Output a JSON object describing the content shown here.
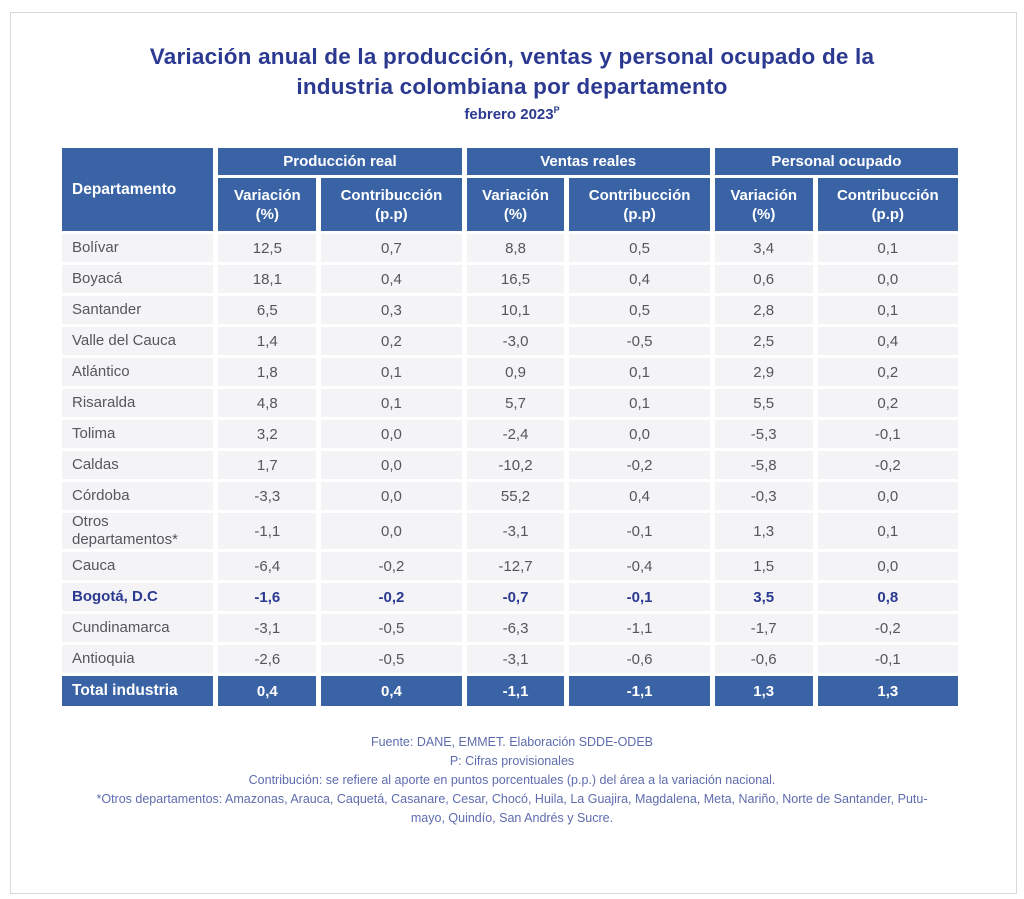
{
  "page": {
    "title_line1": "Variación anual de la producción, ventas y personal ocupado de la",
    "title_line2": "industria colombiana por departamento",
    "subtitle": "febrero 2023",
    "subtitle_sup": "P"
  },
  "colors": {
    "header_blue": "#3a63a5",
    "navy": "#2b3990",
    "row_gray": "#f4f4f6",
    "text_gray": "#55565e",
    "footer_blue": "#5e6cae"
  },
  "table": {
    "corner_header": "Departamento",
    "groups": [
      {
        "label": "Producción real"
      },
      {
        "label": "Ventas reales"
      },
      {
        "label": "Personal ocupado"
      }
    ],
    "subheaders": [
      {
        "top": "Variación",
        "bottom": "(%)"
      },
      {
        "top": "Contribucción",
        "bottom": "(p.p)"
      },
      {
        "top": "Variación",
        "bottom": "(%)"
      },
      {
        "top": "Contribucción",
        "bottom": "(p.p)"
      },
      {
        "top": "Variación",
        "bottom": "(%)"
      },
      {
        "top": "Contribucción",
        "bottom": "(p.p)"
      }
    ],
    "rows": [
      {
        "name": "Bolívar",
        "bold": false,
        "values": [
          "12,5",
          "0,7",
          "8,8",
          "0,5",
          "3,4",
          "0,1"
        ]
      },
      {
        "name": "Boyacá",
        "bold": false,
        "values": [
          "18,1",
          "0,4",
          "16,5",
          "0,4",
          "0,6",
          "0,0"
        ]
      },
      {
        "name": "Santander",
        "bold": false,
        "values": [
          "6,5",
          "0,3",
          "10,1",
          "0,5",
          "2,8",
          "0,1"
        ]
      },
      {
        "name": "Valle del Cauca",
        "bold": false,
        "values": [
          "1,4",
          "0,2",
          "-3,0",
          "-0,5",
          "2,5",
          "0,4"
        ]
      },
      {
        "name": "Atlántico",
        "bold": false,
        "values": [
          "1,8",
          "0,1",
          "0,9",
          "0,1",
          "2,9",
          "0,2"
        ]
      },
      {
        "name": "Risaralda",
        "bold": false,
        "values": [
          "4,8",
          "0,1",
          "5,7",
          "0,1",
          "5,5",
          "0,2"
        ]
      },
      {
        "name": "Tolima",
        "bold": false,
        "values": [
          "3,2",
          "0,0",
          "-2,4",
          "0,0",
          "-5,3",
          "-0,1"
        ]
      },
      {
        "name": "Caldas",
        "bold": false,
        "values": [
          "1,7",
          "0,0",
          "-10,2",
          "-0,2",
          "-5,8",
          "-0,2"
        ]
      },
      {
        "name": "Córdoba",
        "bold": false,
        "values": [
          "-3,3",
          "0,0",
          "55,2",
          "0,4",
          "-0,3",
          "0,0"
        ]
      },
      {
        "name": "Otros departamentos*",
        "bold": false,
        "values": [
          "-1,1",
          "0,0",
          "-3,1",
          "-0,1",
          "1,3",
          "0,1"
        ]
      },
      {
        "name": "Cauca",
        "bold": false,
        "values": [
          "-6,4",
          "-0,2",
          "-12,7",
          "-0,4",
          "1,5",
          "0,0"
        ]
      },
      {
        "name": "Bogotá, D.C",
        "bold": true,
        "values": [
          "-1,6",
          "-0,2",
          "-0,7",
          "-0,1",
          "3,5",
          "0,8"
        ]
      },
      {
        "name": "Cundinamarca",
        "bold": false,
        "values": [
          "-3,1",
          "-0,5",
          "-6,3",
          "-1,1",
          "-1,7",
          "-0,2"
        ]
      },
      {
        "name": "Antioquia",
        "bold": false,
        "values": [
          "-2,6",
          "-0,5",
          "-3,1",
          "-0,6",
          "-0,6",
          "-0,1"
        ]
      }
    ],
    "total": {
      "name": "Total industria",
      "values": [
        "0,4",
        "0,4",
        "-1,1",
        "-1,1",
        "1,3",
        "1,3"
      ]
    }
  },
  "footer": {
    "line1": "Fuente: DANE, EMMET. Elaboración SDDE-ODEB",
    "line2": "P: Cifras provisionales",
    "line3": "Contribución: se refiere al aporte en puntos porcentuales (p.p.) del área a la variación nacional.",
    "line4": "*Otros departamentos: Amazonas, Arauca, Caquetá, Casanare, Cesar, Chocó, Huila, La Guajira, Magdalena, Meta, Nariño, Norte de Santander, Putu-",
    "line5": "mayo, Quindío, San Andrés y Sucre."
  }
}
